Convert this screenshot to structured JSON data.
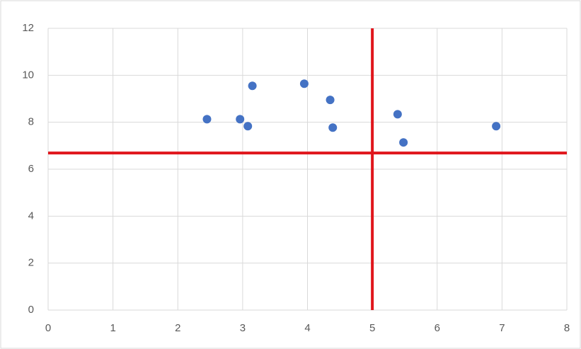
{
  "chart_data": {
    "type": "scatter",
    "x": [
      2.45,
      2.96,
      3.08,
      3.15,
      3.95,
      4.35,
      4.39,
      5.39,
      5.48,
      6.91
    ],
    "series": [
      {
        "color": "#4472c4",
        "values": [
          8.13,
          8.13,
          7.83,
          9.55,
          9.64,
          8.95,
          7.77,
          8.34,
          7.14,
          7.83
        ]
      }
    ],
    "xlim": [
      0,
      8
    ],
    "xticks": [
      0,
      1,
      2,
      3,
      4,
      5,
      6,
      7,
      8
    ],
    "ylim": [
      0,
      12
    ],
    "yticks": [
      0,
      2,
      4,
      6,
      8,
      10,
      12
    ],
    "grid": true,
    "vlines": [
      5
    ],
    "hlines": [
      6.69
    ],
    "line_color": "#e0161c"
  }
}
